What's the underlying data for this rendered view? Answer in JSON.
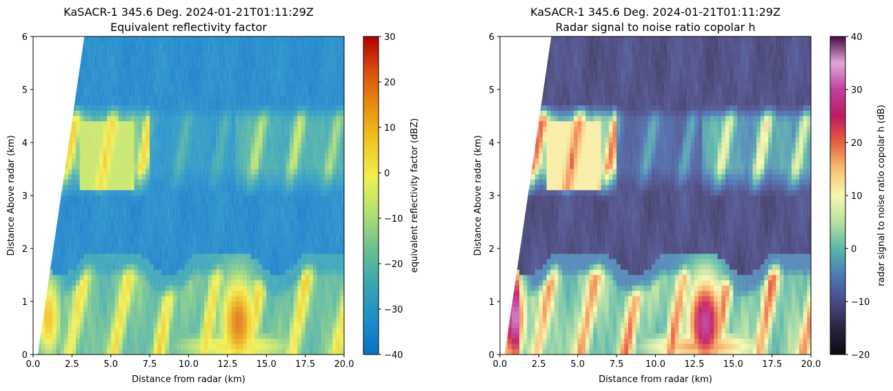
{
  "chart_data": [
    {
      "type": "heatmap",
      "title": "KaSACR-1 345.6 Deg. 2024-01-21T01:11:29Z",
      "subtitle": "Equivalent reflectivity factor",
      "xlabel": "Distance from radar (km)",
      "ylabel": "Distance Above radar  (km)",
      "xlim": [
        0,
        20
      ],
      "ylim": [
        0,
        6
      ],
      "xticks": [
        "0.0",
        "2.5",
        "5.0",
        "7.5",
        "10.0",
        "12.5",
        "15.0",
        "17.5",
        "20.0"
      ],
      "xtick_values": [
        0,
        2.5,
        5,
        7.5,
        10,
        12.5,
        15,
        17.5,
        20
      ],
      "yticks": [
        "0",
        "1",
        "2",
        "3",
        "4",
        "5",
        "6"
      ],
      "ytick_values": [
        0,
        1,
        2,
        3,
        4,
        5,
        6
      ],
      "colorbar": {
        "label": "equivalent reflectivity factor (dBZ)",
        "range": [
          -40,
          30
        ],
        "ticks": [
          "30",
          "20",
          "10",
          "0",
          "−10",
          "−20",
          "−30",
          "−40"
        ],
        "tick_values": [
          30,
          20,
          10,
          0,
          -10,
          -20,
          -30,
          -40
        ],
        "colormap": "HomeyerRainbow",
        "colors": [
          "#0a6fc8",
          "#1c8ec8",
          "#3aa6b0",
          "#6cc090",
          "#b0e070",
          "#f0f050",
          "#f0c820",
          "#e89010",
          "#d85010",
          "#b40000"
        ]
      },
      "cloud_layers_km": [
        [
          0,
          1.9
        ],
        [
          2.9,
          4.7
        ]
      ],
      "radar_beam_edge_km": [
        [
          0.3,
          0.0
        ],
        [
          3.3,
          6.0
        ]
      ]
    },
    {
      "type": "heatmap",
      "title": "KaSACR-1 345.6 Deg. 2024-01-21T01:11:29Z",
      "subtitle": "Radar signal to noise ratio copolar h",
      "xlabel": "Distance from radar (km)",
      "ylabel": "Distance Above radar  (km)",
      "xlim": [
        0,
        20
      ],
      "ylim": [
        0,
        6
      ],
      "xticks": [
        "0.0",
        "2.5",
        "5.0",
        "7.5",
        "10.0",
        "12.5",
        "15.0",
        "17.5",
        "20.0"
      ],
      "xtick_values": [
        0,
        2.5,
        5,
        7.5,
        10,
        12.5,
        15,
        17.5,
        20
      ],
      "yticks": [
        "0",
        "1",
        "2",
        "3",
        "4",
        "5",
        "6"
      ],
      "ytick_values": [
        0,
        1,
        2,
        3,
        4,
        5,
        6
      ],
      "colorbar": {
        "label": "radar signal to noise ratio copolar h (dB)",
        "range": [
          -20,
          40
        ],
        "ticks": [
          "40",
          "30",
          "20",
          "10",
          "0",
          "−10",
          "−20"
        ],
        "tick_values": [
          40,
          30,
          20,
          10,
          0,
          -10,
          -20
        ],
        "colormap": "ChaseSpectral",
        "colors": [
          "#0c0a10",
          "#2a2440",
          "#4a4a88",
          "#4a7ab8",
          "#5ab8a8",
          "#b8e0a0",
          "#f8f8b0",
          "#f8c070",
          "#e86040",
          "#c01860",
          "#c040a0",
          "#e0a8d8",
          "#4a0848"
        ]
      },
      "cloud_layers_km": [
        [
          0,
          1.9
        ],
        [
          2.9,
          4.7
        ]
      ],
      "radar_beam_edge_km": [
        [
          0.3,
          0.0
        ],
        [
          3.3,
          6.0
        ]
      ]
    }
  ]
}
